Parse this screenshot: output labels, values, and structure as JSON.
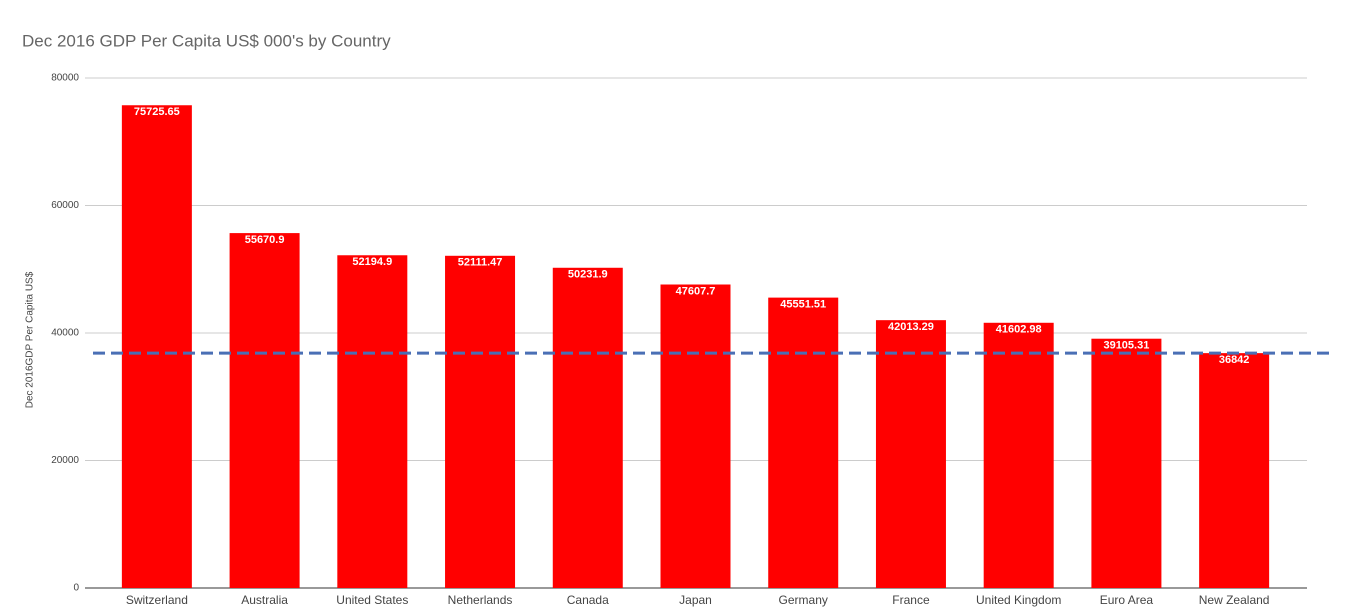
{
  "chart_data": {
    "type": "bar",
    "title": "Dec 2016 GDP Per Capita US$ 000's by Country",
    "y_label": "Dec 2016GDP Per Capita US$",
    "categories": [
      "Switzerland",
      "Australia",
      "United States",
      "Netherlands",
      "Canada",
      "Japan",
      "Germany",
      "France",
      "United Kingdom",
      "Euro Area",
      "New Zealand"
    ],
    "values": [
      75725.65,
      55670.9,
      52194.9,
      52111.47,
      50231.9,
      47607.7,
      45551.51,
      42013.29,
      41602.98,
      39105.31,
      36842
    ],
    "color": "#ff0000",
    "ylim": [
      0,
      80000
    ],
    "yticks": [
      0,
      20000,
      40000,
      60000,
      80000
    ],
    "grid": true,
    "reference_line": {
      "value": 36842,
      "color": "#4a6fb5"
    }
  }
}
